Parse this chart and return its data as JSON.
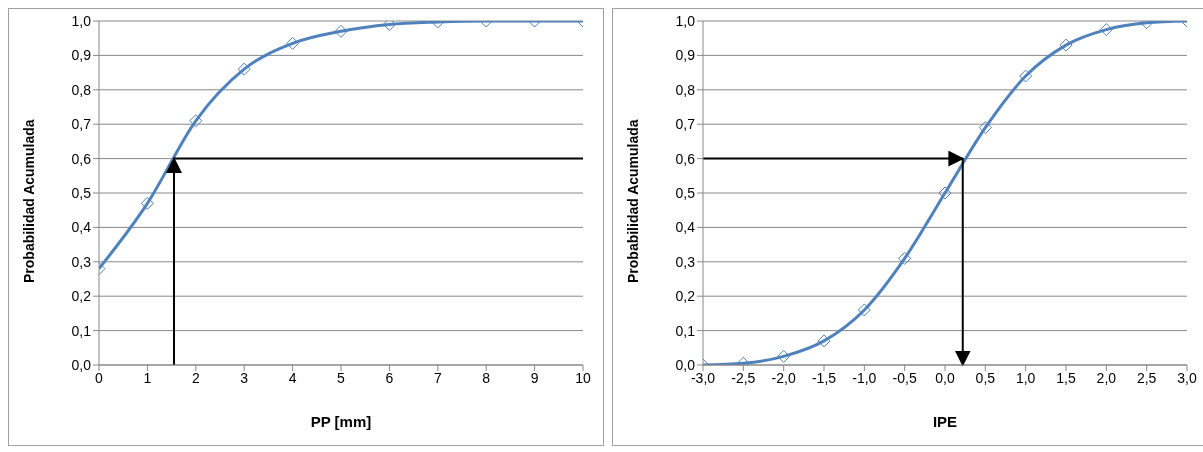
{
  "chart_data": [
    {
      "type": "line",
      "xlabel": "PP [mm]",
      "ylabel": "Probabilidad Acumulada",
      "x": [
        0,
        1,
        2,
        3,
        4,
        5,
        6,
        7,
        8,
        9,
        10
      ],
      "series": [
        {
          "color": "#4f81bd",
          "values": [
            0.28,
            0.47,
            0.71,
            0.86,
            0.935,
            0.97,
            0.99,
            0.997,
            1.0,
            1.0,
            1.0
          ]
        }
      ],
      "xlim": [
        0,
        10
      ],
      "xticks": [
        0,
        1,
        2,
        3,
        4,
        5,
        6,
        7,
        8,
        9,
        10
      ],
      "ylim": [
        0,
        1
      ],
      "yticks": [
        {
          "value": 0,
          "label": "0,0"
        },
        {
          "value": 0.1,
          "label": "0,1"
        },
        {
          "value": 0.2,
          "label": "0,2"
        },
        {
          "value": 0.3,
          "label": "0,3"
        },
        {
          "value": 0.4,
          "label": "0,4"
        },
        {
          "value": 0.5,
          "label": "0,5"
        },
        {
          "value": 0.6,
          "label": "0,6"
        },
        {
          "value": 0.7,
          "label": "0,7"
        },
        {
          "value": 0.8,
          "label": "0,8"
        },
        {
          "value": 0.9,
          "label": "0,9"
        },
        {
          "value": 1,
          "label": "1,0"
        }
      ],
      "grid": "y",
      "marker": "diamond",
      "line_style": "solid",
      "legend": false,
      "ref_lines": [
        {
          "axis": "x",
          "value": 1.55,
          "color": "#000000"
        },
        {
          "axis": "y",
          "value": 0.6,
          "color": "#000000"
        }
      ]
    },
    {
      "type": "line",
      "xlabel": "IPE",
      "ylabel": "Probabilidad Acumulada",
      "x": [
        -3,
        -2.5,
        -2,
        -1.5,
        -1,
        -0.5,
        0,
        0.5,
        1,
        1.5,
        2,
        2.5,
        3
      ],
      "series": [
        {
          "color": "#4f81bd",
          "values": [
            0.0,
            0.005,
            0.025,
            0.07,
            0.16,
            0.31,
            0.5,
            0.69,
            0.84,
            0.93,
            0.975,
            0.995,
            1.0
          ]
        }
      ],
      "xlim": [
        -3,
        3
      ],
      "xticks": [
        {
          "value": -3,
          "label": "-3,0"
        },
        {
          "value": -2.5,
          "label": "-2,5"
        },
        {
          "value": -2,
          "label": "-2,0"
        },
        {
          "value": -1.5,
          "label": "-1,5"
        },
        {
          "value": -1,
          "label": "-1,0"
        },
        {
          "value": -0.5,
          "label": "-0,5"
        },
        {
          "value": 0,
          "label": "0,0"
        },
        {
          "value": 0.5,
          "label": "0,5"
        },
        {
          "value": 1,
          "label": "1,0"
        },
        {
          "value": 1.5,
          "label": "1,5"
        },
        {
          "value": 2,
          "label": "2,0"
        },
        {
          "value": 2.5,
          "label": "2,5"
        },
        {
          "value": 3,
          "label": "3,0"
        }
      ],
      "ylim": [
        0,
        1
      ],
      "yticks": [
        {
          "value": 0,
          "label": "0,0"
        },
        {
          "value": 0.1,
          "label": "0,1"
        },
        {
          "value": 0.2,
          "label": "0,2"
        },
        {
          "value": 0.3,
          "label": "0,3"
        },
        {
          "value": 0.4,
          "label": "0,4"
        },
        {
          "value": 0.5,
          "label": "0,5"
        },
        {
          "value": 0.6,
          "label": "0,6"
        },
        {
          "value": 0.7,
          "label": "0,7"
        },
        {
          "value": 0.8,
          "label": "0,8"
        },
        {
          "value": 0.9,
          "label": "0,9"
        },
        {
          "value": 1,
          "label": "1,0"
        }
      ],
      "grid": "y",
      "marker": "diamond",
      "line_style": "solid",
      "legend": false,
      "ref_lines": [
        {
          "axis": "x",
          "value": 0.22,
          "color": "#000000"
        },
        {
          "axis": "y",
          "value": 0.6,
          "color": "#000000"
        }
      ]
    }
  ]
}
